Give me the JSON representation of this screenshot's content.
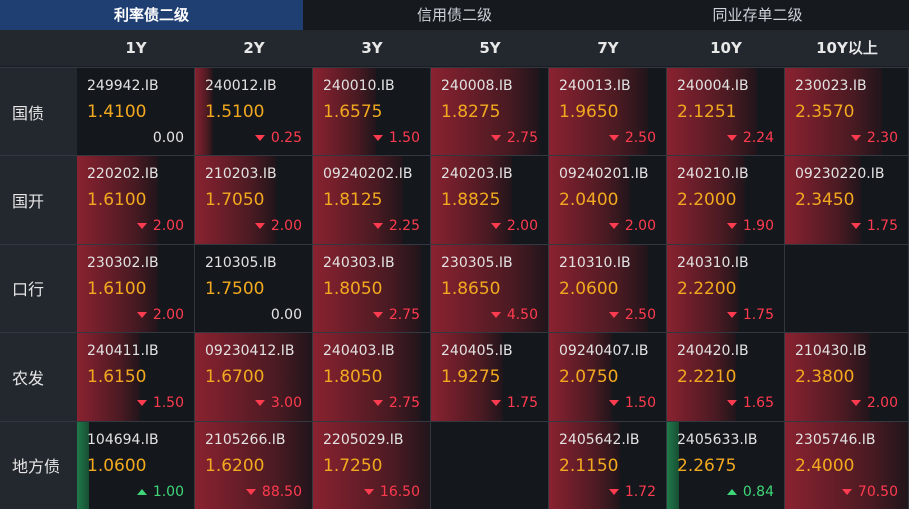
{
  "tabs": [
    {
      "label": "利率债二级",
      "active": true
    },
    {
      "label": "信用债二级",
      "active": false
    },
    {
      "label": "同业存单二级",
      "active": false
    }
  ],
  "table": {
    "columns": [
      "1Y",
      "2Y",
      "3Y",
      "5Y",
      "7Y",
      "10Y",
      "10Y以上"
    ],
    "rows": [
      {
        "label": "国债",
        "cells": [
          {
            "code": "249942.IB",
            "yield": "1.4100",
            "change": "0.00",
            "direction": "flat"
          },
          {
            "code": "240012.IB",
            "yield": "1.5100",
            "change": "0.25",
            "direction": "down"
          },
          {
            "code": "240010.IB",
            "yield": "1.6575",
            "change": "1.50",
            "direction": "down"
          },
          {
            "code": "240008.IB",
            "yield": "1.8275",
            "change": "2.75",
            "direction": "down"
          },
          {
            "code": "240013.IB",
            "yield": "1.9650",
            "change": "2.50",
            "direction": "down"
          },
          {
            "code": "240004.IB",
            "yield": "2.1251",
            "change": "2.24",
            "direction": "down"
          },
          {
            "code": "230023.IB",
            "yield": "2.3570",
            "change": "2.30",
            "direction": "down"
          }
        ]
      },
      {
        "label": "国开",
        "cells": [
          {
            "code": "220202.IB",
            "yield": "1.6100",
            "change": "2.00",
            "direction": "down"
          },
          {
            "code": "210203.IB",
            "yield": "1.7050",
            "change": "2.00",
            "direction": "down"
          },
          {
            "code": "09240202.IB",
            "yield": "1.8125",
            "change": "2.25",
            "direction": "down"
          },
          {
            "code": "240203.IB",
            "yield": "1.8825",
            "change": "2.00",
            "direction": "down"
          },
          {
            "code": "09240201.IB",
            "yield": "2.0400",
            "change": "2.00",
            "direction": "down"
          },
          {
            "code": "240210.IB",
            "yield": "2.2000",
            "change": "1.90",
            "direction": "down"
          },
          {
            "code": "09230220.IB",
            "yield": "2.3450",
            "change": "1.75",
            "direction": "down"
          }
        ]
      },
      {
        "label": "口行",
        "cells": [
          {
            "code": "230302.IB",
            "yield": "1.6100",
            "change": "2.00",
            "direction": "down"
          },
          {
            "code": "210305.IB",
            "yield": "1.7500",
            "change": "0.00",
            "direction": "flat"
          },
          {
            "code": "240303.IB",
            "yield": "1.8050",
            "change": "2.75",
            "direction": "down"
          },
          {
            "code": "230305.IB",
            "yield": "1.8650",
            "change": "4.50",
            "direction": "down"
          },
          {
            "code": "210310.IB",
            "yield": "2.0600",
            "change": "2.50",
            "direction": "down"
          },
          {
            "code": "240310.IB",
            "yield": "2.2200",
            "change": "1.75",
            "direction": "down"
          },
          null
        ]
      },
      {
        "label": "农发",
        "cells": [
          {
            "code": "240411.IB",
            "yield": "1.6150",
            "change": "1.50",
            "direction": "down"
          },
          {
            "code": "09230412.IB",
            "yield": "1.6700",
            "change": "3.00",
            "direction": "down"
          },
          {
            "code": "240403.IB",
            "yield": "1.8050",
            "change": "2.75",
            "direction": "down"
          },
          {
            "code": "240405.IB",
            "yield": "1.9275",
            "change": "1.75",
            "direction": "down"
          },
          {
            "code": "09240407.IB",
            "yield": "2.0750",
            "change": "1.50",
            "direction": "down"
          },
          {
            "code": "240420.IB",
            "yield": "2.2210",
            "change": "1.65",
            "direction": "down"
          },
          {
            "code": "210430.IB",
            "yield": "2.3800",
            "change": "2.00",
            "direction": "down"
          }
        ]
      },
      {
        "label": "地方债",
        "cells": [
          {
            "code": "104694.IB",
            "yield": "1.0600",
            "change": "1.00",
            "direction": "up"
          },
          {
            "code": "2105266.IB",
            "yield": "1.6200",
            "change": "88.50",
            "direction": "down"
          },
          {
            "code": "2205029.IB",
            "yield": "1.7250",
            "change": "16.50",
            "direction": "down"
          },
          null,
          {
            "code": "2405642.IB",
            "yield": "2.1150",
            "change": "1.72",
            "direction": "down"
          },
          {
            "code": "2405633.IB",
            "yield": "2.2675",
            "change": "0.84",
            "direction": "up"
          },
          {
            "code": "2305746.IB",
            "yield": "2.4000",
            "change": "70.50",
            "direction": "down"
          }
        ]
      }
    ]
  }
}
